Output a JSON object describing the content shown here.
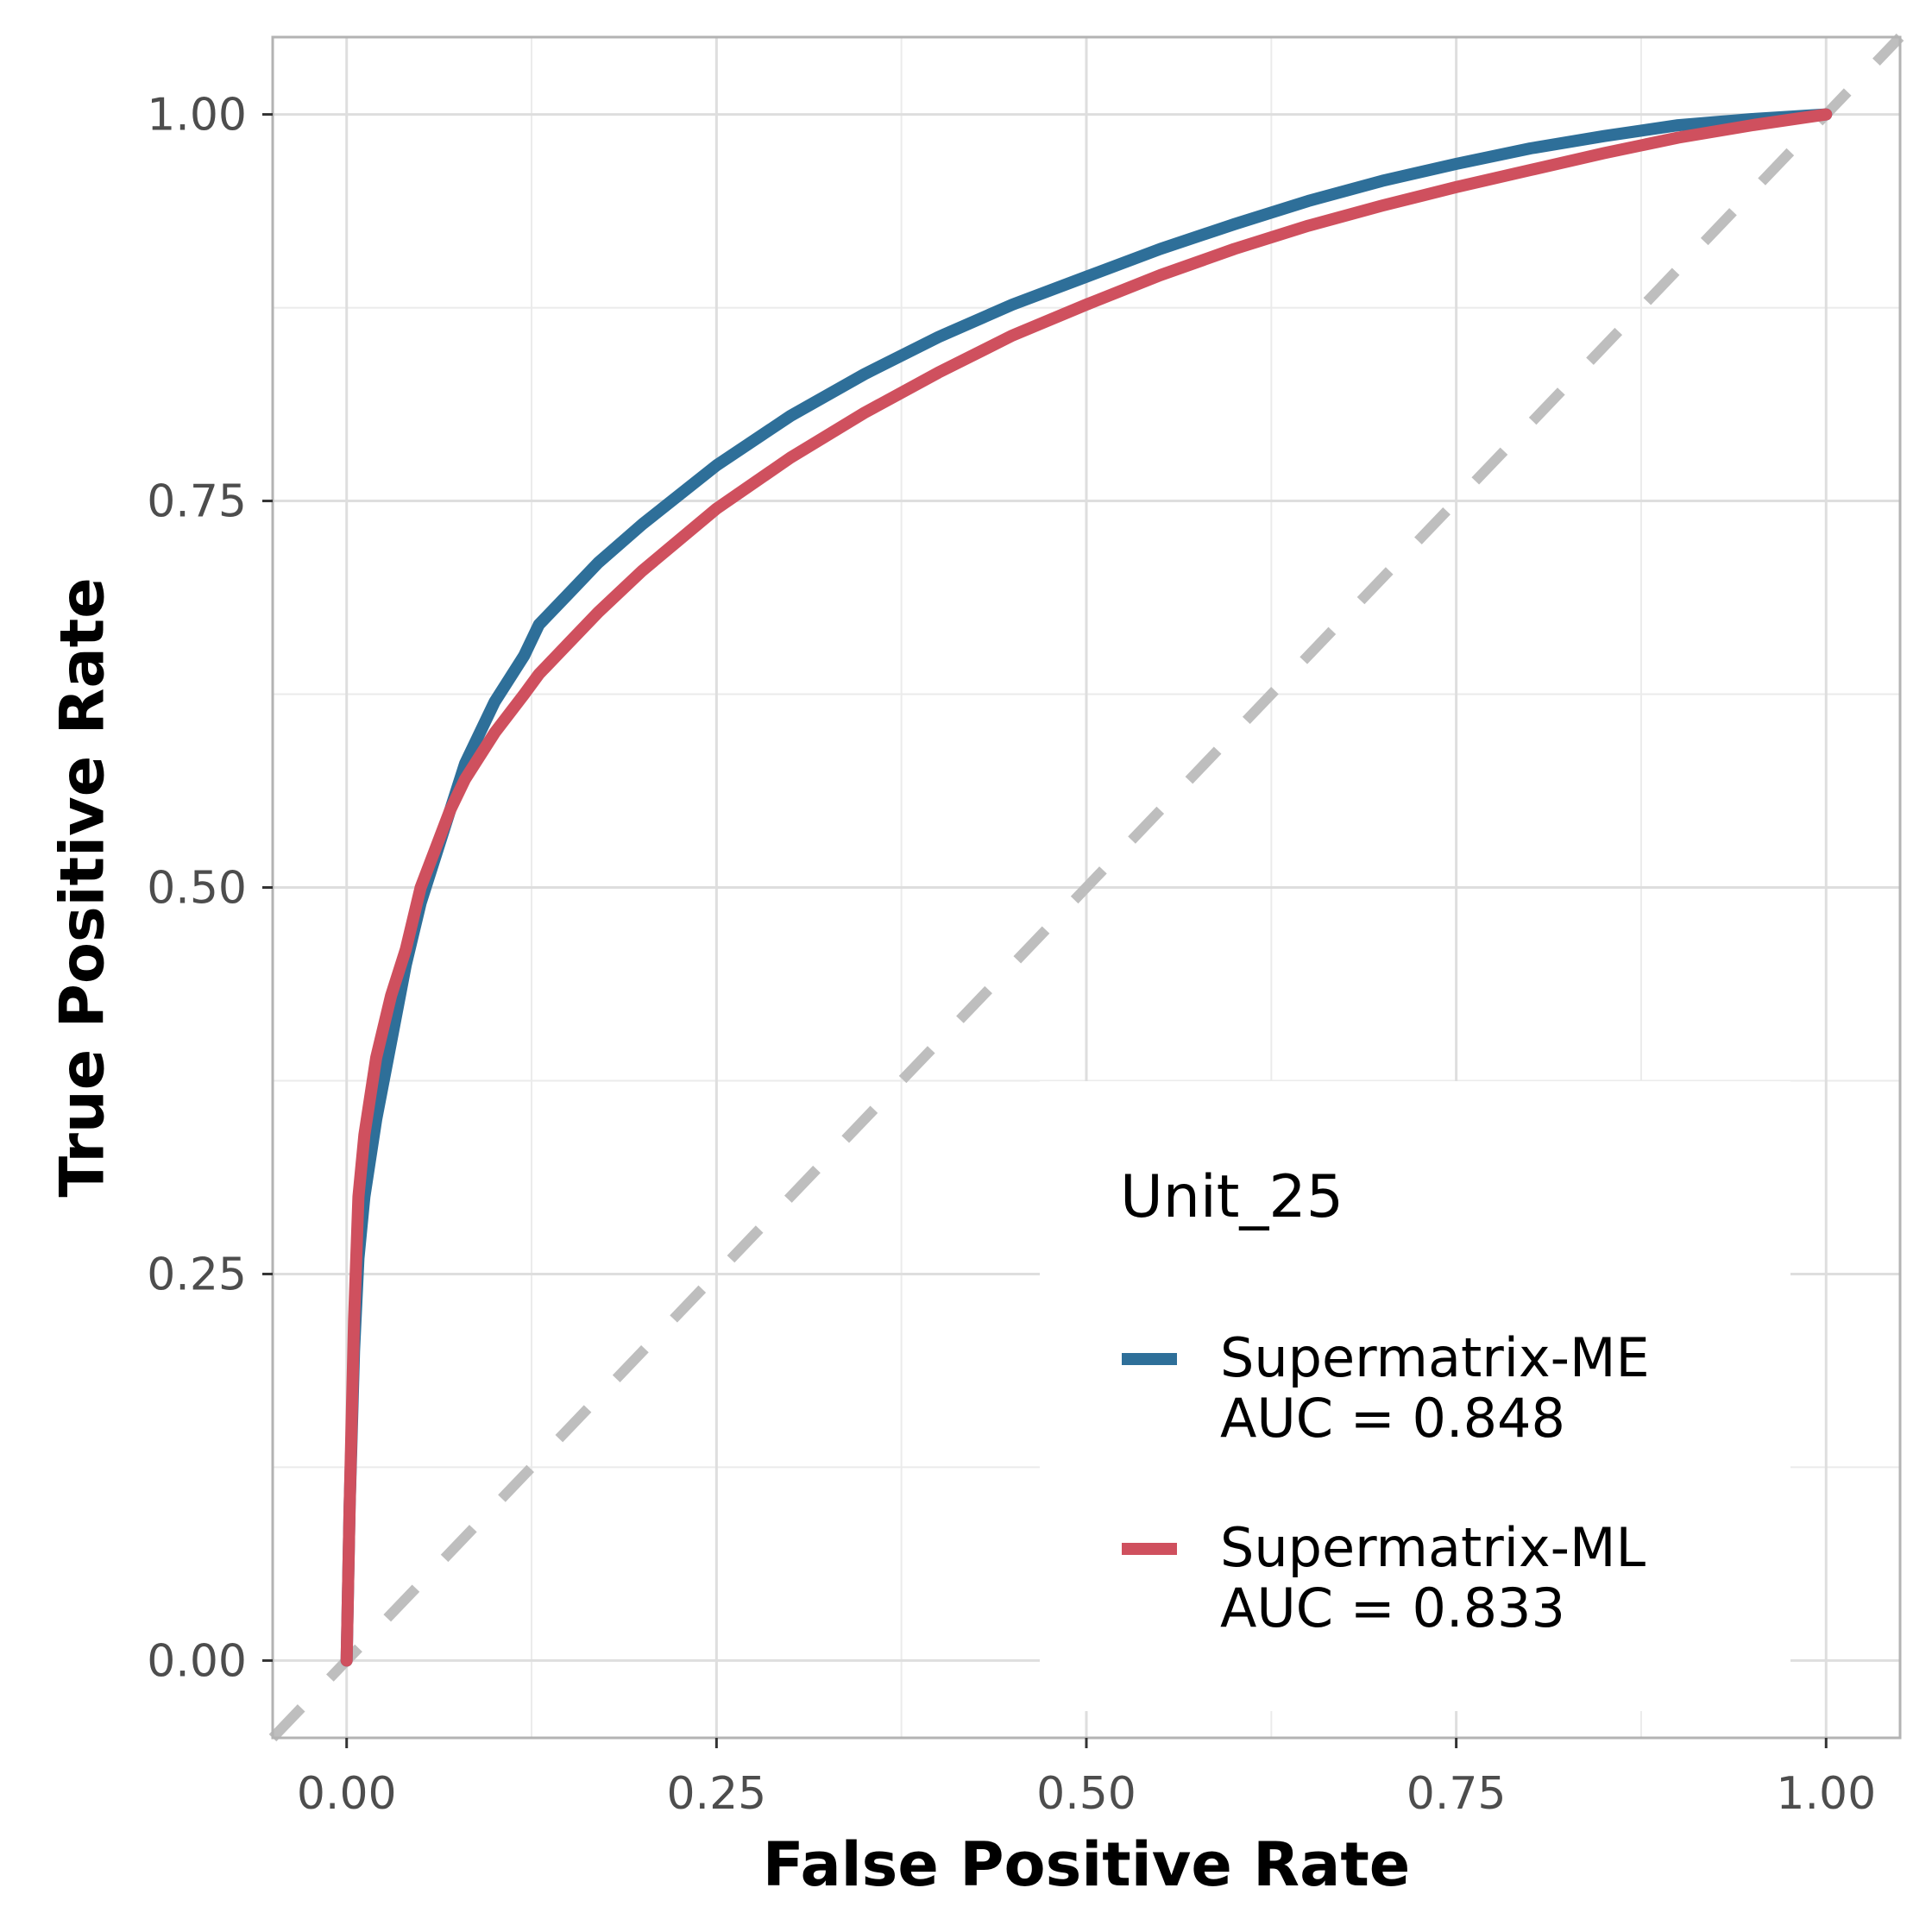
{
  "chart_data": {
    "type": "line",
    "title": "",
    "xlabel": "False Positive Rate",
    "ylabel": "True Positive Rate",
    "xlim": [
      -0.05,
      1.05
    ],
    "ylim": [
      -0.05,
      1.05
    ],
    "x_ticks": [
      0.0,
      0.25,
      0.5,
      0.75,
      1.0
    ],
    "y_ticks": [
      0.0,
      0.25,
      0.5,
      0.75,
      1.0
    ],
    "x_tick_labels": [
      "0.00",
      "0.25",
      "0.50",
      "0.75",
      "1.00"
    ],
    "y_tick_labels": [
      "0.00",
      "0.25",
      "0.50",
      "0.75",
      "1.00"
    ],
    "grid": true,
    "legend": {
      "title": "Unit_25",
      "position": "bottom-right"
    },
    "reference_line": {
      "style": "dashed",
      "color": "#bebebe",
      "from": [
        -0.05,
        -0.05
      ],
      "to": [
        1.05,
        1.05
      ]
    },
    "series": [
      {
        "name": "Supermatrix-ME",
        "label_line1": "Supermatrix-ME",
        "label_line2": "AUC = 0.848",
        "auc": 0.848,
        "color": "#2e6f99",
        "x": [
          0.0,
          0.002,
          0.005,
          0.008,
          0.012,
          0.02,
          0.03,
          0.04,
          0.05,
          0.06,
          0.07,
          0.08,
          0.1,
          0.12,
          0.13,
          0.15,
          0.17,
          0.2,
          0.25,
          0.3,
          0.35,
          0.4,
          0.45,
          0.5,
          0.55,
          0.6,
          0.65,
          0.7,
          0.75,
          0.8,
          0.85,
          0.9,
          0.95,
          1.0
        ],
        "y": [
          0.0,
          0.1,
          0.2,
          0.26,
          0.3,
          0.35,
          0.4,
          0.45,
          0.49,
          0.52,
          0.55,
          0.58,
          0.62,
          0.65,
          0.67,
          0.69,
          0.71,
          0.735,
          0.773,
          0.805,
          0.832,
          0.856,
          0.877,
          0.895,
          0.913,
          0.929,
          0.944,
          0.957,
          0.968,
          0.978,
          0.986,
          0.993,
          0.997,
          1.0
        ]
      },
      {
        "name": "Supermatrix-ML",
        "label_line1": "Supermatrix-ML",
        "label_line2": "AUC = 0.833",
        "auc": 0.833,
        "color": "#cf505e",
        "x": [
          0.0,
          0.002,
          0.005,
          0.008,
          0.012,
          0.02,
          0.03,
          0.04,
          0.05,
          0.06,
          0.07,
          0.08,
          0.1,
          0.12,
          0.13,
          0.15,
          0.17,
          0.2,
          0.25,
          0.3,
          0.35,
          0.4,
          0.45,
          0.5,
          0.55,
          0.6,
          0.65,
          0.7,
          0.75,
          0.8,
          0.85,
          0.9,
          0.95,
          1.0
        ],
        "y": [
          0.0,
          0.1,
          0.22,
          0.3,
          0.34,
          0.39,
          0.43,
          0.46,
          0.5,
          0.525,
          0.55,
          0.57,
          0.6,
          0.625,
          0.638,
          0.658,
          0.678,
          0.705,
          0.745,
          0.778,
          0.807,
          0.833,
          0.857,
          0.877,
          0.896,
          0.913,
          0.928,
          0.941,
          0.953,
          0.964,
          0.975,
          0.985,
          0.993,
          1.0
        ]
      }
    ]
  }
}
